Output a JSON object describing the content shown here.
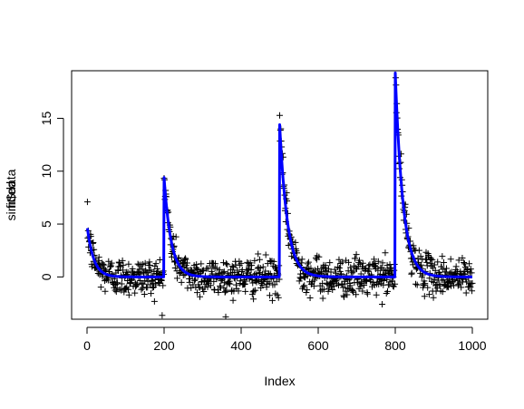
{
  "chart_data": {
    "type": "scatter",
    "title": "",
    "xlabel": "Index",
    "ylabel_overplot": [
      "sim$data",
      "fitted"
    ],
    "xlim": [
      -40,
      1040
    ],
    "ylim": [
      -4,
      19.5
    ],
    "xticks": [
      0,
      200,
      400,
      600,
      800,
      1000
    ],
    "yticks": [
      0,
      5,
      10,
      15
    ],
    "grid": false,
    "legend": "none",
    "colors": {
      "points": "#000000",
      "fitted_line": "#0000ff",
      "frame": "#000000"
    },
    "point_marker": "+",
    "n_points": 1000,
    "segments": [
      {
        "start": 1,
        "end": 199,
        "jump_value": 4.6,
        "decay_rate": 0.06
      },
      {
        "start": 200,
        "end": 499,
        "jump_value": 9.4,
        "decay_rate": 0.055
      },
      {
        "start": 500,
        "end": 799,
        "jump_value": 14.4,
        "decay_rate": 0.05
      },
      {
        "start": 800,
        "end": 1000,
        "jump_value": 19.3,
        "decay_rate": 0.05
      }
    ],
    "noise_sd": 0.9,
    "series": [
      {
        "kind": "points"
      },
      {
        "kind": "fitted_line"
      }
    ]
  }
}
